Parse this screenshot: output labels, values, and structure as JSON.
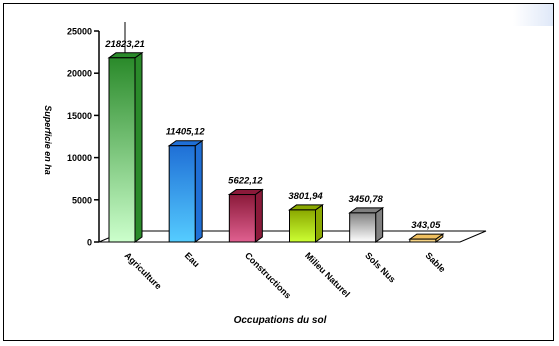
{
  "chart_data": {
    "type": "bar",
    "categories": [
      "Agriculture",
      "Eau",
      "Constructions",
      "Milieu Naturel",
      "Sols Nus",
      "Sable"
    ],
    "values": [
      21823.21,
      11405.12,
      5622.12,
      3801.94,
      3450.78,
      343.05
    ],
    "value_labels": [
      "21823,21",
      "11405,12",
      "5622,12",
      "3801,94",
      "3450,78",
      "343,05"
    ],
    "xlabel": "Occupations du sol",
    "ylabel": "Superficie en ha",
    "ylim": [
      0,
      25000
    ],
    "yticks": [
      0,
      5000,
      10000,
      15000,
      20000,
      25000
    ],
    "grid": false,
    "legend": "none",
    "colors": [
      "#2a8a2a",
      "#1f6fd6",
      "#8b1a3a",
      "#8aa800",
      "#808080",
      "#f0c060"
    ],
    "gradient_light": [
      "#ccffcc",
      "#55ccff",
      "#e06090",
      "#ccff33",
      "#ffffff",
      "#ffe8a8"
    ],
    "style": "3d"
  }
}
